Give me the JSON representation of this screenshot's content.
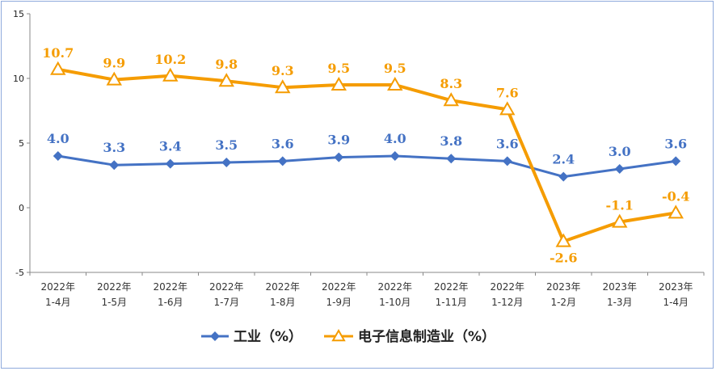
{
  "chart_data": {
    "type": "line",
    "categories": [
      [
        "2022年",
        "1-4月"
      ],
      [
        "2022年",
        "1-5月"
      ],
      [
        "2022年",
        "1-6月"
      ],
      [
        "2022年",
        "1-7月"
      ],
      [
        "2022年",
        "1-8月"
      ],
      [
        "2022年",
        "1-9月"
      ],
      [
        "2022年",
        "1-10月"
      ],
      [
        "2022年",
        "1-11月"
      ],
      [
        "2022年",
        "1-12月"
      ],
      [
        "2023年",
        "1-2月"
      ],
      [
        "2023年",
        "1-3月"
      ],
      [
        "2023年",
        "1-4月"
      ]
    ],
    "series": [
      {
        "name": "工业（%）",
        "color": "#4472c4",
        "marker": "diamond",
        "values": [
          4.0,
          3.3,
          3.4,
          3.5,
          3.6,
          3.9,
          4.0,
          3.8,
          3.6,
          2.4,
          3.0,
          3.6
        ],
        "labels": [
          "4.0",
          "3.3",
          "3.4",
          "3.5",
          "3.6",
          "3.9",
          "4.0",
          "3.8",
          "3.6",
          "2.4",
          "3.0",
          "3.6"
        ]
      },
      {
        "name": "电子信息制造业（%）",
        "color": "#f59c00",
        "marker": "triangle",
        "values": [
          10.7,
          9.9,
          10.2,
          9.8,
          9.3,
          9.5,
          9.5,
          8.3,
          7.6,
          -2.6,
          -1.1,
          -0.4
        ],
        "labels": [
          "10.7",
          "9.9",
          "10.2",
          "9.8",
          "9.3",
          "9.5",
          "9.5",
          "8.3",
          "7.6",
          "-2.6",
          "-1.1",
          "-0.4"
        ]
      }
    ],
    "ylim": [
      -5,
      15
    ],
    "yticks": [
      -5,
      0,
      5,
      10,
      15
    ],
    "grid": false,
    "legend_position": "bottom"
  }
}
